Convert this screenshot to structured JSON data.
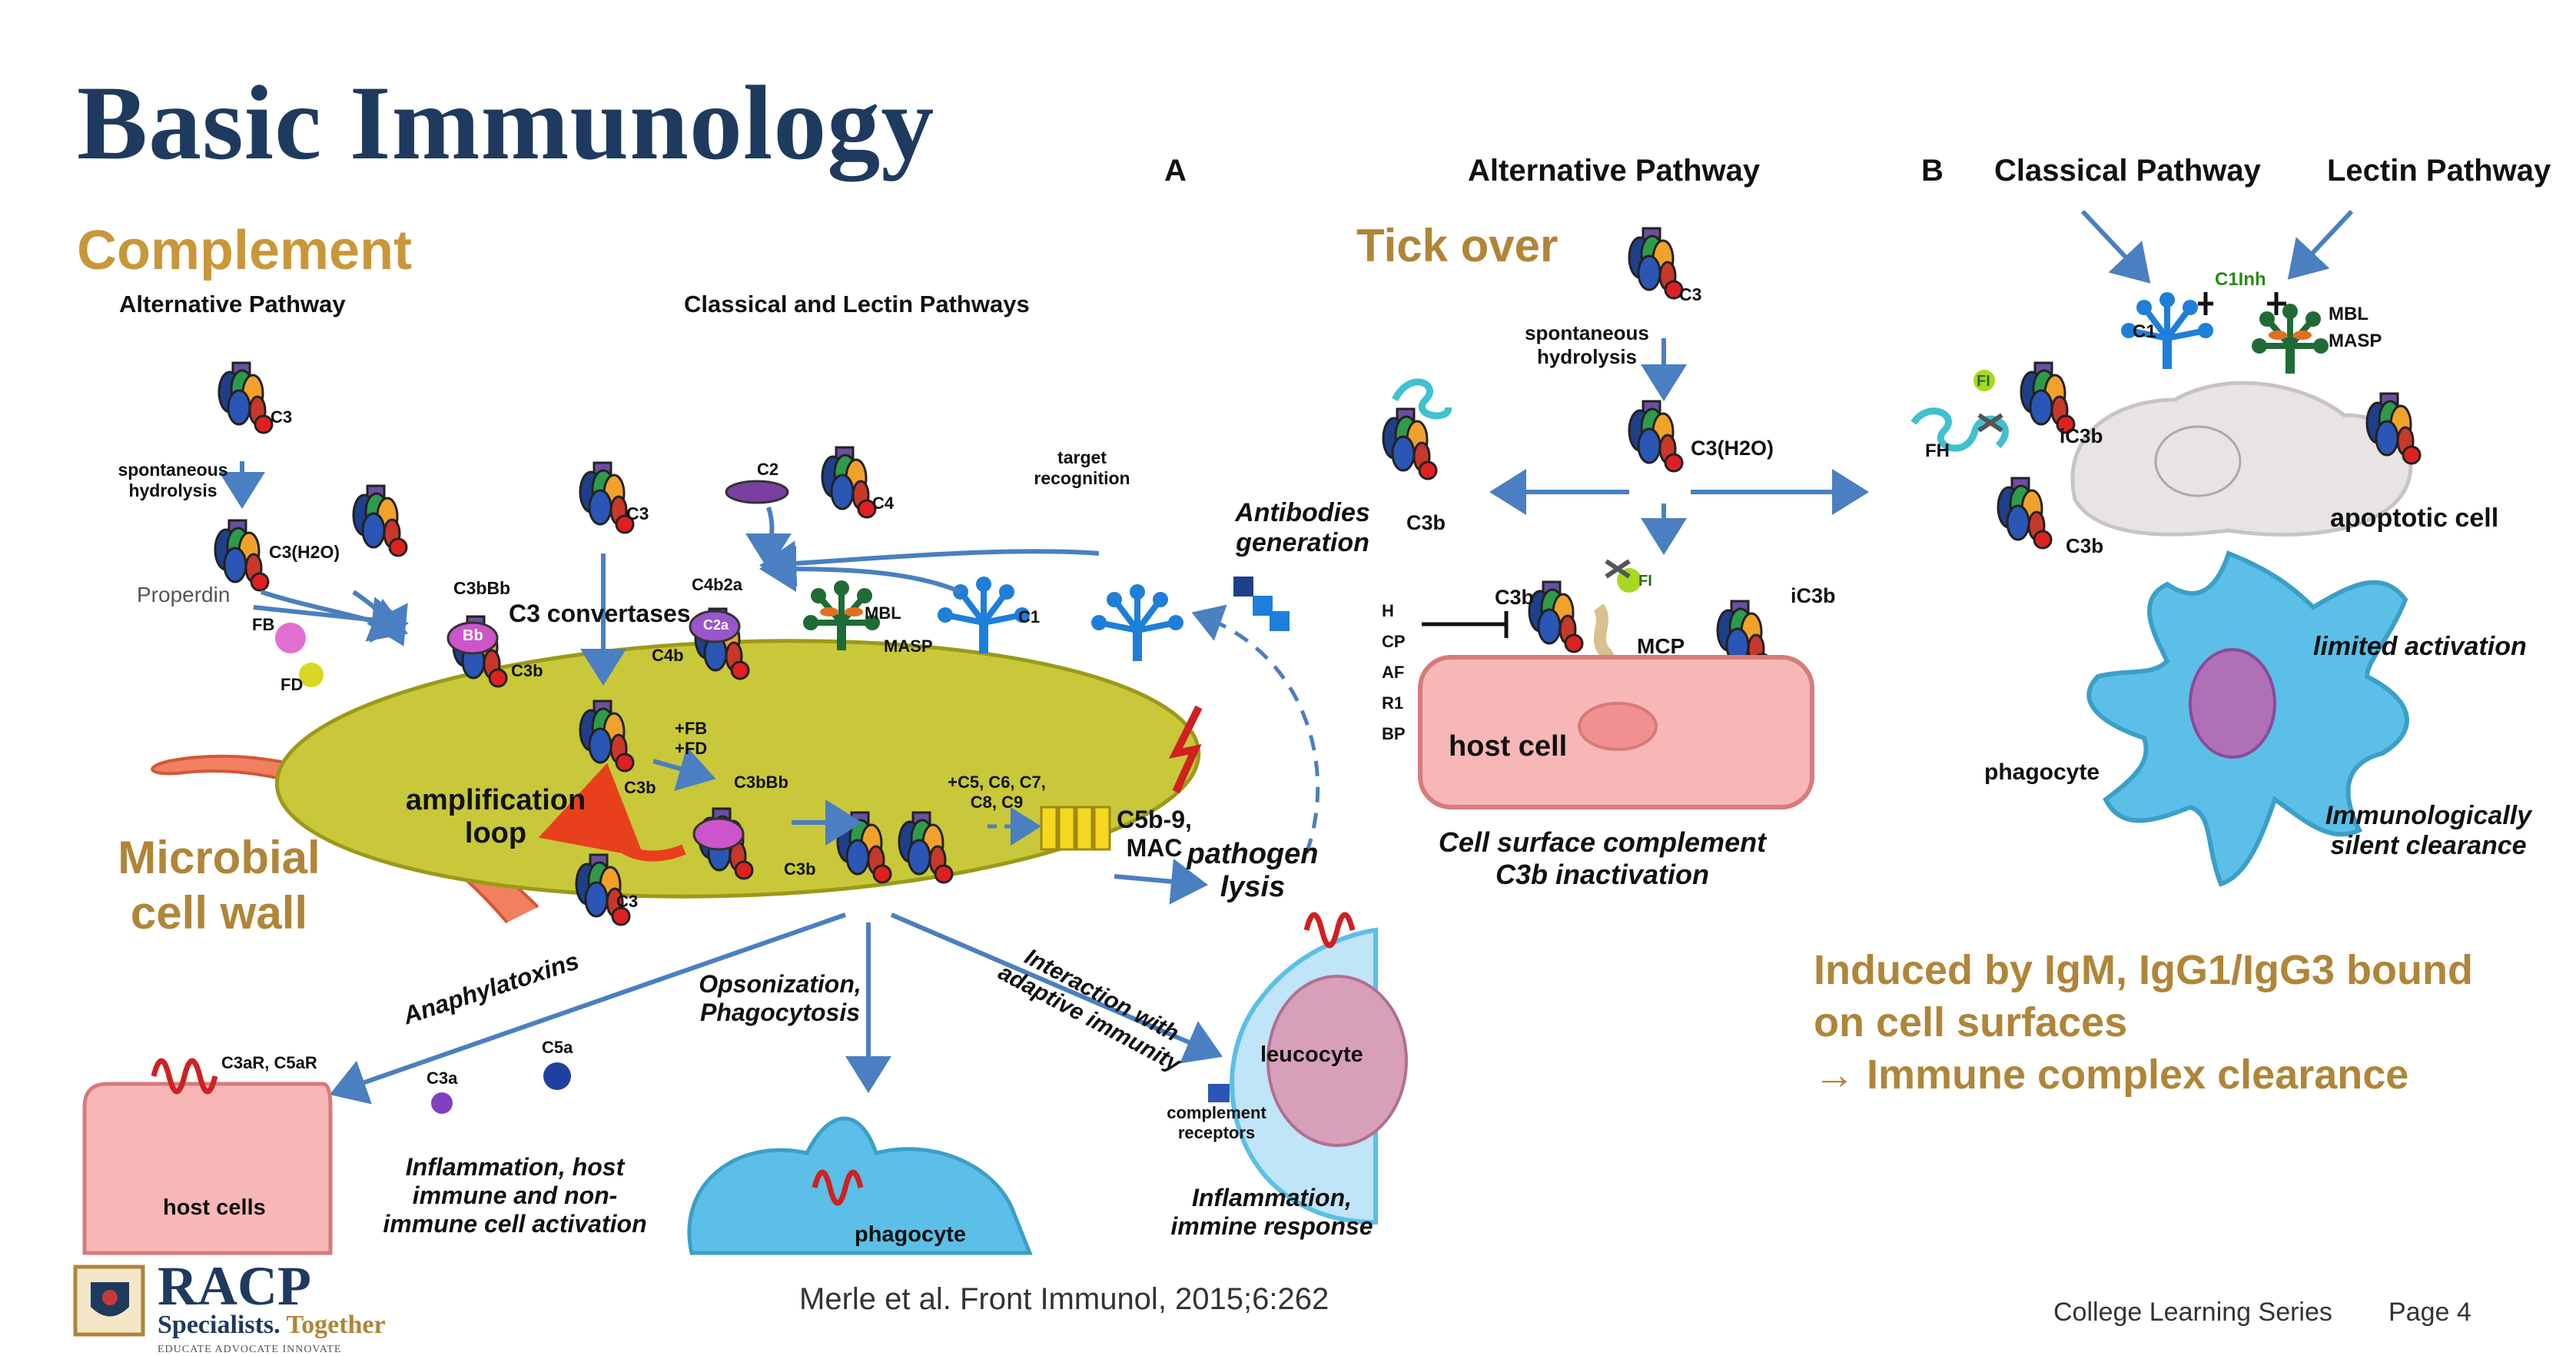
{
  "title": "Basic Immunology",
  "subtitle": "Complement",
  "panel_a": {
    "panel_label": "A",
    "alt_pathway_header": "Alternative Pathway",
    "classical_lectin_header": "Classical and Lectin Pathways",
    "c3_label": "C3",
    "spontaneous_hydrolysis": "spontaneous hydrolysis",
    "c3h2o_label": "C3(H2O)",
    "properdin": "Properdin",
    "fb": "FB",
    "fd": "FD",
    "c3bbb": "C3bBb",
    "bb": "Bb",
    "c3b": "C3b",
    "c3_convertases": "C3 convertases",
    "c3_mid": "C3",
    "c2": "C2",
    "c4": "C4",
    "c4b2a": "C4b2a",
    "c2a": "C2a",
    "c4b": "C4b",
    "mbl": "MBL",
    "masp": "MASP",
    "c1": "C1",
    "target_recognition": "target recognition",
    "antibodies_generation": "Antibodies generation",
    "plus_fb_fd": "+FB +FD",
    "c3bbb_2": "C3bBb",
    "amplification_loop": "amplification loop",
    "c3b_2": "C3b",
    "c3b_3": "C3b",
    "c3_low": "C3",
    "terminal_components": "+C5, C6, C7, C8, C9",
    "mac": "C5b-9, MAC",
    "microbial_cell_wall": "Microbial cell wall",
    "pathogen_lysis": "pathogen lysis",
    "anaphylatoxins": "Anaphylatoxins",
    "opsonization": "Opsonization, Phagocytosis",
    "interaction": "Interaction with adaptive immunity",
    "c3ar_c5ar": "C3aR, C5aR",
    "c3a": "C3a",
    "c5a": "C5a",
    "host_cells": "host cells",
    "inflammation_1": "Inflammation, host immune and non-immune cell activation",
    "phagocyte": "phagocyte",
    "leucocyte": "leucocyte",
    "complement_receptors": "complement receptors",
    "inflammation_2": "Inflammation, immine response"
  },
  "panel_mid": {
    "alt_pathway_header": "Alternative Pathway",
    "tick_over": "Tick over",
    "c3": "C3",
    "spontaneous_hydrolysis": "spontaneous hydrolysis",
    "c3h2o": "C3(H2O)",
    "c3b_left": "C3b",
    "c3b_cell": "C3b",
    "fi": "FI",
    "mcp": "MCP",
    "ic3b": "iC3b",
    "regulators": [
      "H",
      "CP",
      "AF",
      "R1",
      "BP"
    ],
    "host_cell": "host cell",
    "caption": "Cell surface complement C3b inactivation"
  },
  "panel_b": {
    "panel_label": "B",
    "classical_pathway": "Classical Pathway",
    "lectin_pathway": "Lectin Pathway",
    "c1inh": "C1Inh",
    "c1": "C1",
    "mbl": "MBL",
    "masp": "MASP",
    "fi": "FI",
    "fh": "FH",
    "ic3b": "iC3b",
    "c3b": "C3b",
    "apoptotic_cell": "apoptotic cell",
    "limited_activation": "limited activation",
    "phagocyte": "phagocyte",
    "silent_clearance": "Immunologically silent clearance"
  },
  "induced_text": {
    "line1": "Induced by IgM, IgG1/IgG3 bound",
    "line2": "on cell surfaces",
    "line3": "→ Immune complex clearance"
  },
  "citation": "Merle et al. Front Immunol, 2015;6:262",
  "footer": {
    "series": "College Learning Series",
    "page": "Page 4"
  },
  "logo": {
    "name": "RACP",
    "tagline_1": "Specialists.",
    "tagline_2": "Together",
    "motto": "EDUCATE ADVOCATE INNOVATE"
  },
  "colors": {
    "title": "#1f3a5f",
    "gold": "#c9973a",
    "arrow_blue": "#4a7fc1",
    "cell_wall": "#c8c83a",
    "host_cell": "#f7b7b7",
    "phagocyte": "#5bbfe8"
  }
}
